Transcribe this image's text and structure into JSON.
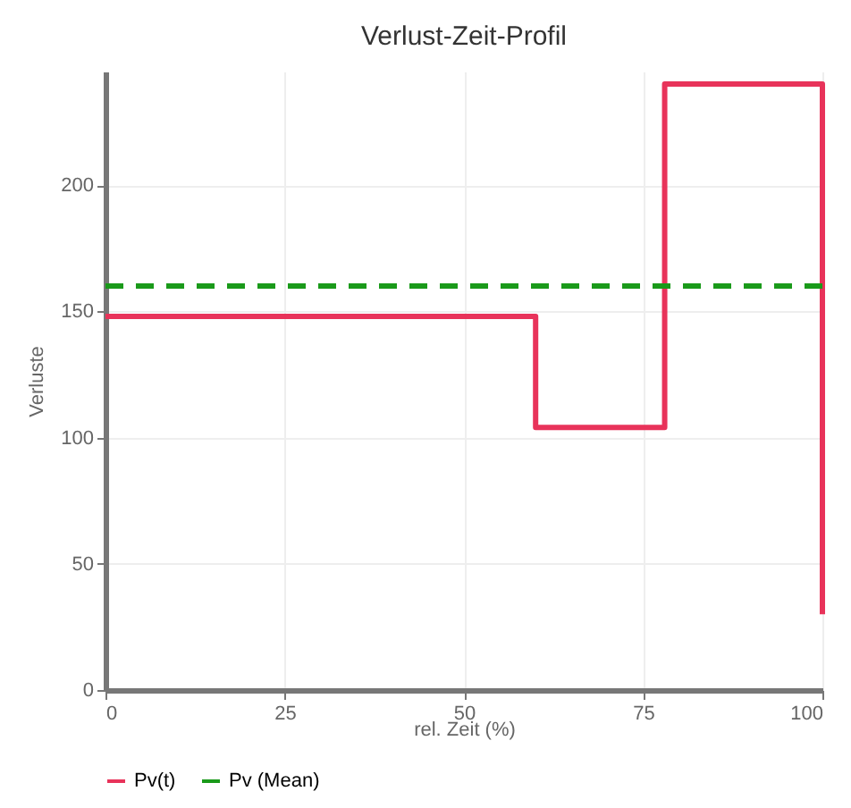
{
  "chart_data": {
    "type": "line",
    "title": "Verlust-Zeit-Profil",
    "xlabel": "rel. Zeit (%)",
    "ylabel": "Verluste",
    "series": [
      {
        "name": "Pv(t)",
        "color": "#e8335a",
        "line_style": "solid",
        "x": [
          0,
          60,
          60,
          78,
          78,
          100,
          100
        ],
        "values": [
          148,
          148,
          104,
          104,
          240,
          240,
          30
        ]
      },
      {
        "name": "Pv (Mean)",
        "color": "#1a9a1a",
        "line_style": "dashed",
        "x": [
          0,
          100
        ],
        "values": [
          160,
          160
        ]
      }
    ],
    "xlim": [
      0,
      100
    ],
    "xticks": [
      0,
      25,
      50,
      75,
      100
    ],
    "ylim": [
      0,
      245
    ],
    "yticks": [
      0,
      50,
      100,
      150,
      200
    ],
    "grid": true,
    "legend": "bottom"
  }
}
